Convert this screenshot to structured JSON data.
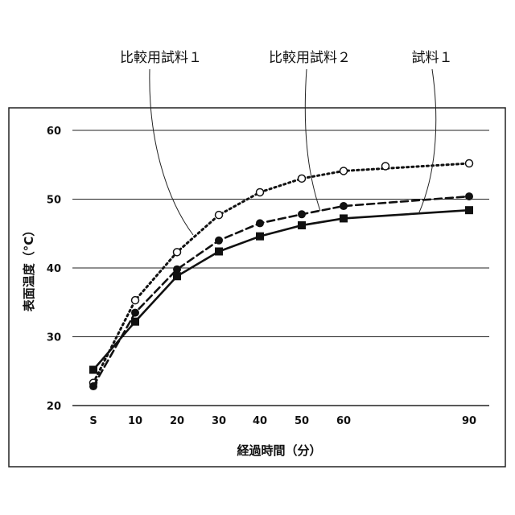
{
  "chart_data": {
    "type": "line",
    "title": "",
    "xlabel": "経過時間（分）",
    "ylabel": "表面温度（°C）",
    "ylim": [
      20,
      60
    ],
    "yticks": [
      20,
      30,
      40,
      50,
      60
    ],
    "x_tick_labels": [
      "S",
      "10",
      "20",
      "30",
      "40",
      "50",
      "60",
      "90"
    ],
    "grid": "horizontal",
    "x": [
      0,
      10,
      20,
      30,
      40,
      50,
      60,
      90
    ],
    "series": [
      {
        "name": "比較用試料１",
        "style": "dotted",
        "marker": "open-circle",
        "color": "#111111",
        "values": [
          23.3,
          35.3,
          42.3,
          47.7,
          51.0,
          53.0,
          54.1,
          55.2
        ]
      },
      {
        "name": "比較用試料２",
        "style": "dashed",
        "marker": "filled-circle",
        "color": "#111111",
        "values": [
          22.8,
          33.5,
          39.8,
          44.0,
          46.5,
          47.8,
          49.0,
          50.4
        ]
      },
      {
        "name": "試料１",
        "style": "solid",
        "marker": "filled-square",
        "color": "#111111",
        "values": [
          25.2,
          32.2,
          38.8,
          42.4,
          44.6,
          46.2,
          47.2,
          48.4
        ]
      }
    ],
    "extra_points": [
      {
        "series": 0,
        "x": 70,
        "value": 54.8
      }
    ]
  }
}
